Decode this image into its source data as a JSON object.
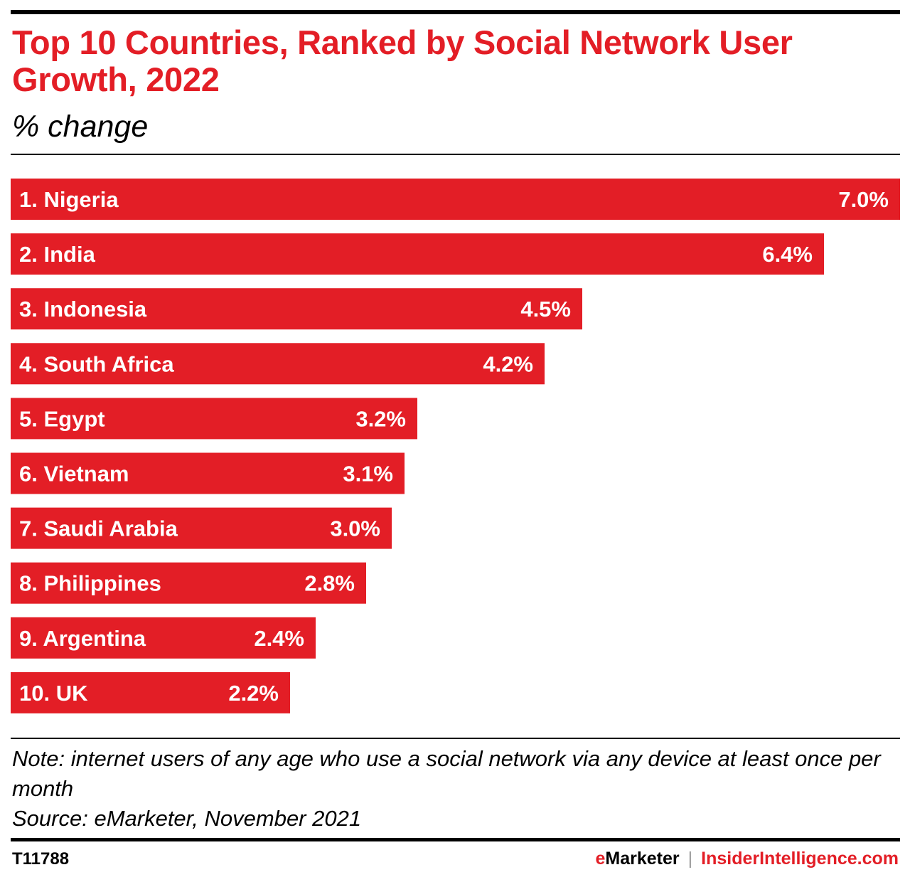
{
  "header": {
    "title": "Top 10 Countries, Ranked by Social Network User Growth, 2022",
    "subtitle": "% change"
  },
  "chart_data": {
    "type": "bar",
    "orientation": "horizontal",
    "title": "Top 10 Countries, Ranked by Social Network User Growth, 2022",
    "subtitle": "% change",
    "categories": [
      "1. Nigeria",
      "2. India",
      "3. Indonesia",
      "4. South Africa",
      "5. Egypt",
      "6. Vietnam",
      "7. Saudi Arabia",
      "8. Philippines",
      "9. Argentina",
      "10. UK"
    ],
    "values": [
      7.0,
      6.4,
      4.5,
      4.2,
      3.2,
      3.1,
      3.0,
      2.8,
      2.4,
      2.2
    ],
    "value_labels": [
      "7.0%",
      "6.4%",
      "4.5%",
      "4.2%",
      "3.2%",
      "3.1%",
      "3.0%",
      "2.8%",
      "2.4%",
      "2.2%"
    ],
    "xlim": [
      0,
      7.0
    ],
    "grid": false,
    "legend": "none",
    "bar_color": "#e31e26"
  },
  "footer": {
    "note": "Note: internet users of any age who use a social network via any device at least once per month",
    "source": "Source: eMarketer, November 2021",
    "chart_id": "T11788",
    "brand_primary": "eMarketer",
    "brand_separator": "|",
    "brand_secondary": "InsiderIntelligence.com"
  },
  "colors": {
    "accent": "#e31e26",
    "text": "#000000",
    "background": "#ffffff"
  }
}
